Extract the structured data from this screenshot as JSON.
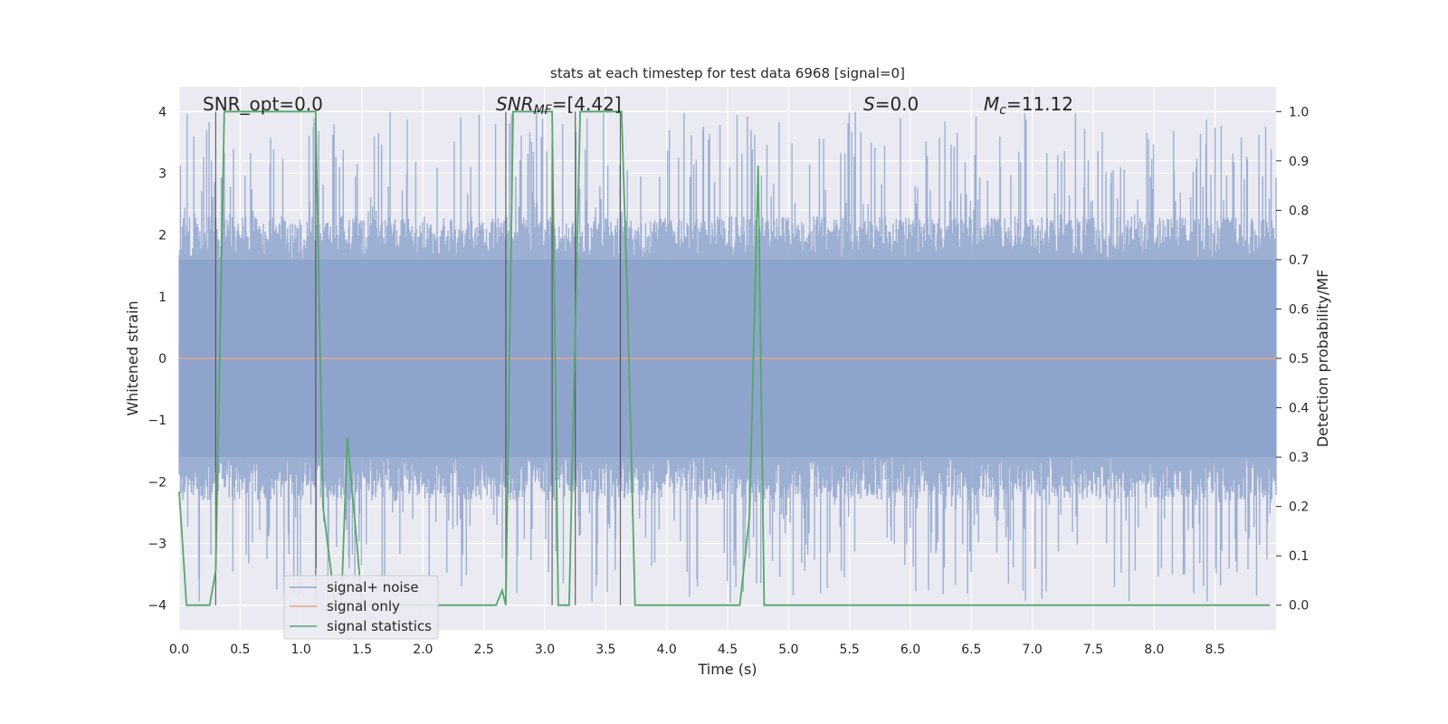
{
  "chart_data": {
    "type": "line",
    "title": "stats at each timestep for test data 6968 [signal=0]",
    "xlabel": "Time (s)",
    "ylabel_left": "Whitened strain",
    "ylabel_right": "Detection probability/MF",
    "xlim": [
      0,
      9.0
    ],
    "ylim_left": [
      -4.4,
      4.4
    ],
    "ylim_right": [
      -0.05,
      1.05
    ],
    "xticks": [
      "0.0",
      "0.5",
      "1.0",
      "1.5",
      "2.0",
      "2.5",
      "3.0",
      "3.5",
      "4.0",
      "4.5",
      "5.0",
      "5.5",
      "6.0",
      "6.5",
      "7.0",
      "7.5",
      "8.0",
      "8.5"
    ],
    "xtick_values": [
      0,
      0.5,
      1,
      1.5,
      2,
      2.5,
      3,
      3.5,
      4,
      4.5,
      5,
      5.5,
      6,
      6.5,
      7,
      7.5,
      8,
      8.5
    ],
    "yticks_left": [
      "−4",
      "−3",
      "−2",
      "−1",
      "0",
      "1",
      "2",
      "3",
      "4"
    ],
    "ytick_left_values": [
      -4,
      -3,
      -2,
      -1,
      0,
      1,
      2,
      3,
      4
    ],
    "yticks_right": [
      "0.0",
      "0.1",
      "0.2",
      "0.3",
      "0.4",
      "0.5",
      "0.6",
      "0.7",
      "0.8",
      "0.9",
      "1.0"
    ],
    "ytick_right_values": [
      0,
      0.1,
      0.2,
      0.3,
      0.4,
      0.5,
      0.6,
      0.7,
      0.8,
      0.9,
      1.0
    ],
    "grid": true,
    "legend_position": "lower-left",
    "annotations": [
      {
        "text": "SNR_opt=0.0",
        "x": 0.2
      },
      {
        "text": "SNR_MF=[4.42]",
        "x": 2.6
      },
      {
        "text": "S=0.0",
        "x": 5.6
      },
      {
        "text": "M_c=11.12",
        "x": 6.6
      }
    ],
    "series": [
      {
        "name": "signal+ noise",
        "color": "#8fa4cc",
        "style": "dense noise band",
        "envelope": {
          "core": [
            -1.6,
            1.6
          ],
          "peak_max": 4.0,
          "peak_min": -3.96
        },
        "points": 1800
      },
      {
        "name": "signal only",
        "color": "#e3a48b",
        "values_constant": 0
      },
      {
        "name": "signal statistics",
        "color": "#55a868",
        "axis": "right",
        "x": [
          0.0,
          0.06,
          0.1,
          0.25,
          0.3,
          0.37,
          0.45,
          0.5,
          1.12,
          1.18,
          1.28,
          1.33,
          1.38,
          1.46,
          1.5,
          1.6,
          2.0,
          2.2,
          2.3,
          2.35,
          2.45,
          2.5,
          2.6,
          2.65,
          2.68,
          2.74,
          2.8,
          3.06,
          3.11,
          3.2,
          3.29,
          3.36,
          3.6,
          3.63,
          3.68,
          3.74,
          3.8,
          4.6,
          4.68,
          4.75,
          4.8,
          4.85,
          5.05,
          5.1,
          8.5,
          8.75,
          8.95
        ],
        "y": [
          0.23,
          0.0,
          0.0,
          0.0,
          0.07,
          1.0,
          1.0,
          1.0,
          1.0,
          0.2,
          0.0,
          0.0,
          0.34,
          0.12,
          0.0,
          0.0,
          0.0,
          0.0,
          0.0,
          0.0,
          0.0,
          0.0,
          0.0,
          0.03,
          0.0,
          1.0,
          1.0,
          1.0,
          0.0,
          0.0,
          1.0,
          1.0,
          1.0,
          1.0,
          0.6,
          0.0,
          0.0,
          0.0,
          0.18,
          0.89,
          0.0,
          0.0,
          0.0,
          0.0,
          0.0,
          0.0,
          0.0
        ]
      }
    ],
    "vlines": [
      0.3,
      1.12,
      2.68,
      3.06,
      3.25,
      3.62
    ]
  }
}
